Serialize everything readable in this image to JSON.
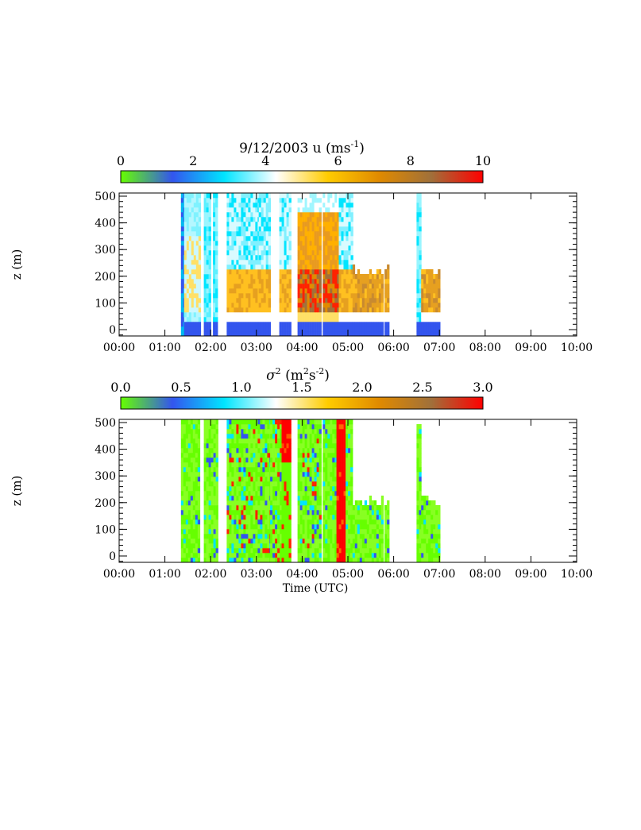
{
  "chart_data": [
    {
      "type": "heatmap",
      "title": "9/12/2003   u   (ms",
      "title_sup": "-1",
      "title_close": ")",
      "colorbar": {
        "ticks": [
          "0",
          "2",
          "4",
          "6",
          "8",
          "10"
        ],
        "range": [
          0,
          10
        ],
        "colors": [
          "#66ff00",
          "#3355ee",
          "#00e5ff",
          "#ffffff",
          "#ffcc00",
          "#e08a00",
          "#a0703a",
          "#ff0000"
        ]
      },
      "ylabel": "z (m)",
      "yticks": [
        "0",
        "100",
        "200",
        "300",
        "400",
        "500"
      ],
      "ylim": [
        0,
        500
      ],
      "xticks": [
        "00:00",
        "01:00",
        "02:00",
        "03:00",
        "04:00",
        "05:00",
        "06:00",
        "07:00",
        "08:00",
        "09:00",
        "10:00"
      ],
      "xlim_hours": [
        0,
        10
      ],
      "xlabel": "",
      "segments": [
        {
          "start": 1.35,
          "end": 1.42,
          "top": 500,
          "profile": "blue"
        },
        {
          "start": 1.42,
          "end": 1.75,
          "top": 500,
          "profile": "cyan_core"
        },
        {
          "start": 1.85,
          "end": 2.0,
          "top": 500,
          "profile": "cyan"
        },
        {
          "start": 2.05,
          "end": 2.15,
          "top": 500,
          "profile": "cyan"
        },
        {
          "start": 2.35,
          "end": 3.05,
          "top": 500,
          "profile": "mixed_low"
        },
        {
          "start": 3.05,
          "end": 3.3,
          "top": 500,
          "profile": "mixed_low"
        },
        {
          "start": 3.5,
          "end": 3.75,
          "top": 500,
          "profile": "mixed_low"
        },
        {
          "start": 3.9,
          "end": 4.4,
          "top": 500,
          "profile": "strong"
        },
        {
          "start": 4.45,
          "end": 4.8,
          "top": 500,
          "profile": "strong"
        },
        {
          "start": 4.8,
          "end": 5.1,
          "top": 500,
          "profile": "mixed_low"
        },
        {
          "start": 5.1,
          "end": 5.75,
          "top": 210,
          "profile": "orange"
        },
        {
          "start": 5.8,
          "end": 5.9,
          "top": 210,
          "profile": "orange"
        },
        {
          "start": 6.5,
          "end": 6.6,
          "top": 500,
          "profile": "cyan"
        },
        {
          "start": 6.6,
          "end": 7.0,
          "top": 210,
          "profile": "orange"
        }
      ]
    },
    {
      "type": "heatmap",
      "title": "σ",
      "title_sup": "2",
      "title_rest": " (m",
      "title_sup2": "2",
      "title_rest2": "s",
      "title_sup3": "-2",
      "title_close": ")",
      "colorbar": {
        "ticks": [
          "0.0",
          "0.5",
          "1.0",
          "1.5",
          "2.0",
          "2.5",
          "3.0"
        ],
        "range": [
          0,
          3
        ],
        "colors": [
          "#66ff00",
          "#3355ee",
          "#00e5ff",
          "#ffffff",
          "#ffcc00",
          "#e08a00",
          "#a0703a",
          "#ff0000"
        ]
      },
      "ylabel": "z (m)",
      "yticks": [
        "0",
        "100",
        "200",
        "300",
        "400",
        "500"
      ],
      "ylim": [
        0,
        500
      ],
      "xticks": [
        "00:00",
        "01:00",
        "02:00",
        "03:00",
        "04:00",
        "05:00",
        "06:00",
        "07:00",
        "08:00",
        "09:00",
        "10:00"
      ],
      "xlim_hours": [
        0,
        10
      ],
      "xlabel": "Time (UTC)",
      "segments": [
        {
          "start": 1.35,
          "end": 1.75,
          "top": 500,
          "profile": "green"
        },
        {
          "start": 1.85,
          "end": 2.15,
          "top": 500,
          "profile": "green"
        },
        {
          "start": 2.35,
          "end": 3.3,
          "top": 500,
          "profile": "green_mixed"
        },
        {
          "start": 3.3,
          "end": 3.55,
          "top": 500,
          "profile": "green_mixed"
        },
        {
          "start": 3.55,
          "end": 3.75,
          "top": 500,
          "profile": "red_top"
        },
        {
          "start": 3.9,
          "end": 4.4,
          "top": 500,
          "profile": "green_mixed"
        },
        {
          "start": 4.45,
          "end": 4.75,
          "top": 500,
          "profile": "green"
        },
        {
          "start": 4.75,
          "end": 4.95,
          "top": 500,
          "profile": "red"
        },
        {
          "start": 4.95,
          "end": 5.1,
          "top": 500,
          "profile": "green"
        },
        {
          "start": 5.1,
          "end": 5.75,
          "top": 200,
          "profile": "green"
        },
        {
          "start": 5.8,
          "end": 5.9,
          "top": 200,
          "profile": "green"
        },
        {
          "start": 6.5,
          "end": 6.6,
          "top": 480,
          "profile": "green"
        },
        {
          "start": 6.6,
          "end": 7.0,
          "top": 200,
          "profile": "green"
        }
      ]
    }
  ]
}
